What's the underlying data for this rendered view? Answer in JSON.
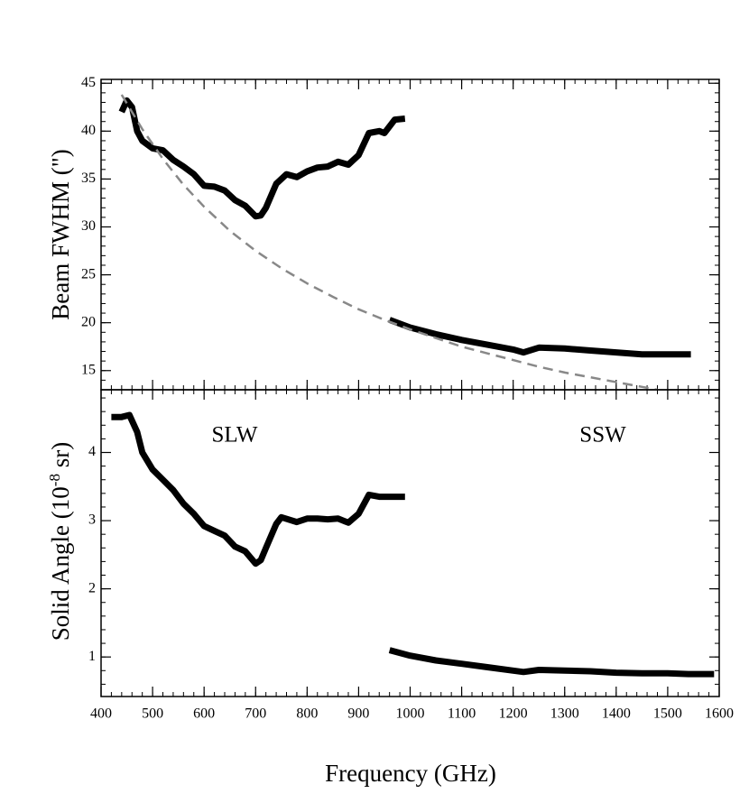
{
  "chart_data": [
    {
      "type": "line",
      "ylabel": "Beam FWHM (\")",
      "xlim": [
        400,
        1600
      ],
      "xticks": [
        400,
        500,
        600,
        700,
        800,
        900,
        1000,
        1100,
        1200,
        1300,
        1400,
        1500,
        1600
      ],
      "ylim": [
        13,
        45.4
      ],
      "yticks": [
        15,
        20,
        25,
        30,
        35,
        40,
        45
      ],
      "series": [
        {
          "color": "#000000",
          "x": [
            440,
            450,
            460,
            470,
            480,
            500,
            520,
            540,
            560,
            580,
            600,
            620,
            640,
            660,
            680,
            700,
            710,
            720,
            740,
            760,
            780,
            800,
            820,
            840,
            860,
            880,
            900,
            920,
            940,
            950,
            970,
            990
          ],
          "values": [
            42,
            43.2,
            42.5,
            40,
            39,
            38.2,
            38,
            37,
            36.3,
            35.5,
            34.3,
            34.2,
            33.8,
            32.8,
            32.2,
            31.1,
            31.2,
            32,
            34.5,
            35.5,
            35.2,
            35.8,
            36.2,
            36.3,
            36.8,
            36.5,
            37.5,
            39.8,
            40,
            39.8,
            41.2,
            41.3
          ]
        },
        {
          "color": "#000000",
          "x": [
            960,
            1000,
            1050,
            1100,
            1150,
            1200,
            1220,
            1250,
            1300,
            1350,
            1400,
            1450,
            1500,
            1545
          ],
          "values": [
            20.3,
            19.5,
            18.8,
            18.2,
            17.7,
            17.2,
            16.9,
            17.4,
            17.3,
            17.1,
            16.9,
            16.7,
            16.7,
            16.7
          ]
        },
        {
          "color": "#888888",
          "dashed": true,
          "x": [
            440,
            480,
            520,
            560,
            600,
            650,
            700,
            750,
            800,
            850,
            900,
            950,
            1000,
            1050,
            1100,
            1150,
            1200,
            1250,
            1300,
            1350,
            1400,
            1450,
            1480
          ],
          "values": [
            43.8,
            40.2,
            37.1,
            34.4,
            32.1,
            29.6,
            27.5,
            25.7,
            24.1,
            22.7,
            21.4,
            20.3,
            19.3,
            18.4,
            17.5,
            16.8,
            16.1,
            15.4,
            14.8,
            14.3,
            13.8,
            13.3,
            13.0
          ]
        }
      ]
    },
    {
      "type": "line",
      "xlabel": "Frequency (GHz)",
      "ylabel": {
        "text": "Solid Angle (10",
        "sup": "-8",
        "end": " sr)"
      },
      "annotations": [
        "SLW",
        "SSW"
      ],
      "xlim": [
        400,
        1600
      ],
      "xticks": [
        400,
        500,
        600,
        700,
        800,
        900,
        1000,
        1100,
        1200,
        1300,
        1400,
        1500,
        1600
      ],
      "ylim": [
        0.42,
        4.92
      ],
      "yticks": [
        1,
        2,
        3,
        4
      ],
      "series": [
        {
          "color": "#000000",
          "x": [
            420,
            440,
            455,
            470,
            480,
            500,
            520,
            540,
            560,
            580,
            600,
            620,
            640,
            660,
            680,
            700,
            710,
            720,
            740,
            750,
            780,
            800,
            820,
            840,
            860,
            880,
            900,
            920,
            940,
            990
          ],
          "values": [
            4.52,
            4.52,
            4.55,
            4.3,
            4.0,
            3.75,
            3.6,
            3.45,
            3.25,
            3.1,
            2.92,
            2.85,
            2.78,
            2.62,
            2.55,
            2.37,
            2.42,
            2.6,
            2.95,
            3.05,
            2.98,
            3.03,
            3.03,
            3.02,
            3.03,
            2.97,
            3.1,
            3.38,
            3.35,
            3.35
          ]
        },
        {
          "color": "#000000",
          "x": [
            960,
            1000,
            1050,
            1100,
            1150,
            1200,
            1220,
            1250,
            1300,
            1350,
            1400,
            1450,
            1500,
            1540,
            1590
          ],
          "values": [
            1.1,
            1.02,
            0.95,
            0.9,
            0.85,
            0.8,
            0.78,
            0.81,
            0.8,
            0.79,
            0.77,
            0.76,
            0.76,
            0.75,
            0.75
          ]
        }
      ]
    }
  ]
}
